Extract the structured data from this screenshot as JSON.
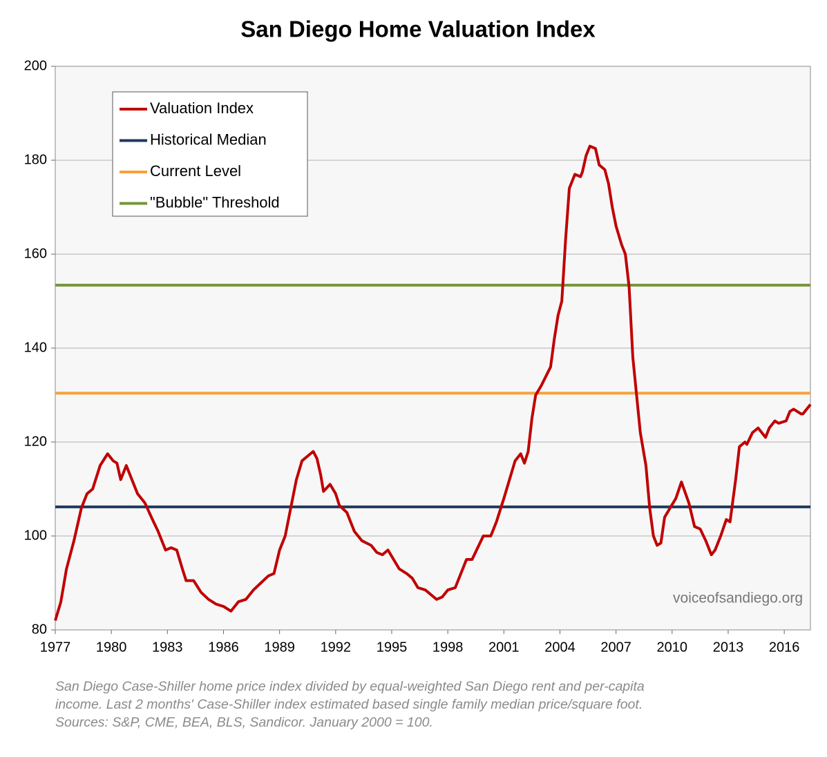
{
  "chart_data": {
    "type": "line",
    "title": "San Diego Home Valuation Index",
    "xlim": [
      1977,
      2017.4
    ],
    "xticks": [
      1977,
      1980,
      1983,
      1986,
      1989,
      1992,
      1995,
      1998,
      2001,
      2004,
      2007,
      2010,
      2013,
      2016
    ],
    "ylim": [
      80,
      200
    ],
    "yticks": [
      80,
      100,
      120,
      140,
      160,
      180,
      200
    ],
    "grid": true,
    "legend": "upper left",
    "annotation": "voiceofsandiego.org",
    "notes": [
      "San Diego Case-Shiller home price index divided by equal-weighted San Diego rent and per-capita",
      "income. Last 2 months' Case-Shiller index estimated based single family median price/square foot.",
      "Sources: S&P, CME, BEA, BLS, Sandicor. January 2000 = 100."
    ],
    "series": [
      {
        "name": "Valuation Index",
        "color": "#c00000",
        "x": [
          1977.0,
          1977.3,
          1977.6,
          1978.0,
          1978.4,
          1978.7,
          1979.0,
          1979.4,
          1979.8,
          1980.1,
          1980.3,
          1980.5,
          1980.8,
          1981.1,
          1981.4,
          1981.8,
          1982.2,
          1982.5,
          1982.9,
          1983.2,
          1983.5,
          1983.8,
          1984.0,
          1984.4,
          1984.8,
          1985.2,
          1985.6,
          1986.0,
          1986.4,
          1986.8,
          1987.2,
          1987.6,
          1988.0,
          1988.4,
          1988.7,
          1989.0,
          1989.3,
          1989.6,
          1989.9,
          1990.2,
          1990.5,
          1990.8,
          1991.0,
          1991.2,
          1991.35,
          1991.7,
          1992.0,
          1992.2,
          1992.6,
          1993.0,
          1993.4,
          1993.9,
          1994.2,
          1994.5,
          1994.8,
          1995.1,
          1995.4,
          1995.8,
          1996.1,
          1996.4,
          1996.8,
          1997.1,
          1997.4,
          1997.7,
          1998.0,
          1998.4,
          1998.7,
          1999.0,
          1999.3,
          1999.6,
          1999.9,
          2000.3,
          2000.6,
          2001.0,
          2001.6,
          2001.9,
          2002.1,
          2002.3,
          2002.5,
          2002.7,
          2003.0,
          2003.5,
          2003.7,
          2003.9,
          2004.1,
          2004.3,
          2004.5,
          2004.8,
          2005.1,
          2005.2,
          2005.4,
          2005.6,
          2005.9,
          2006.1,
          2006.4,
          2006.6,
          2006.8,
          2007.0,
          2007.3,
          2007.5,
          2007.7,
          2007.9,
          2008.1,
          2008.3,
          2008.6,
          2008.8,
          2009.0,
          2009.2,
          2009.4,
          2009.6,
          2009.9,
          2010.2,
          2010.5,
          2010.9,
          2011.2,
          2011.5,
          2011.8,
          2012.1,
          2012.3,
          2012.6,
          2012.9,
          2013.1,
          2013.4,
          2013.6,
          2013.9,
          2014.0,
          2014.3,
          2014.6,
          2015.0,
          2015.2,
          2015.5,
          2015.7,
          2016.1,
          2016.3,
          2016.5,
          2016.9,
          2017.0,
          2017.4
        ],
        "values": [
          82,
          86,
          93,
          99,
          106,
          109,
          110,
          115,
          117.5,
          116,
          115.5,
          112,
          115,
          112,
          109,
          107,
          103.5,
          101,
          97,
          97.5,
          97,
          93,
          90.5,
          90.5,
          88,
          86.5,
          85.5,
          85,
          84,
          86,
          86.5,
          88.5,
          90,
          91.5,
          92,
          97,
          100,
          106,
          112,
          116,
          117,
          118,
          116.5,
          113,
          109.5,
          111,
          109,
          106.5,
          105,
          101,
          99,
          98,
          96.5,
          96,
          97,
          95,
          93,
          92,
          91,
          89,
          88.5,
          87.5,
          86.5,
          87,
          88.5,
          89,
          92,
          95,
          95,
          97.5,
          100,
          100,
          103,
          108,
          116,
          117.5,
          115.5,
          118,
          125,
          130,
          132,
          136,
          142,
          147,
          150,
          163,
          174,
          177,
          176.5,
          177.5,
          181,
          183,
          182.5,
          179,
          178,
          175,
          170,
          166,
          162,
          160,
          153,
          138,
          130,
          122,
          115,
          106,
          100,
          98,
          98.5,
          104,
          106,
          108,
          111.5,
          107,
          102,
          101.5,
          99,
          96,
          97,
          100,
          103.5,
          103,
          112,
          119,
          120,
          119.5,
          122,
          123,
          121,
          123,
          124.5,
          124,
          124.5,
          126.5,
          127,
          126,
          126,
          128
        ]
      },
      {
        "name": "Historical Median",
        "color": "#1f3a5f",
        "x": [
          1977,
          2017.4
        ],
        "values": [
          106.2,
          106.2
        ]
      },
      {
        "name": "Current Level",
        "color": "#f7a13a",
        "x": [
          1977,
          2017.4
        ],
        "values": [
          130.4,
          130.4
        ]
      },
      {
        "name": "\"Bubble\" Threshold",
        "color": "#76953a",
        "x": [
          1977,
          2017.4
        ],
        "values": [
          153.4,
          153.4
        ]
      }
    ]
  }
}
